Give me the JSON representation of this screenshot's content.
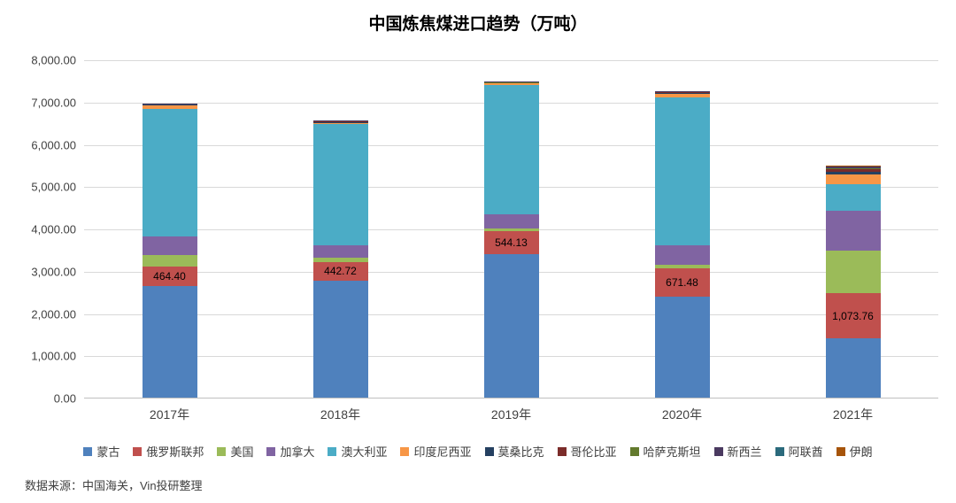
{
  "chart_data": {
    "type": "bar",
    "subtype": "stacked",
    "title": "中国炼焦煤进口趋势（万吨）",
    "categories": [
      "2017年",
      "2018年",
      "2019年",
      "2020年",
      "2021年"
    ],
    "ylim": [
      0,
      8000
    ],
    "ytick_step": 1000,
    "yticks": [
      "0.00",
      "1,000.00",
      "2,000.00",
      "3,000.00",
      "4,000.00",
      "5,000.00",
      "6,000.00",
      "7,000.00",
      "8,000.00"
    ],
    "grid": true,
    "legend_position": "bottom",
    "series": [
      {
        "name": "蒙古",
        "color": "#4F81BD",
        "values": [
          2640,
          2770,
          3390,
          2390,
          1400
        ]
      },
      {
        "name": "俄罗斯联邦",
        "color": "#C0504D",
        "values": [
          464.4,
          442.72,
          544.13,
          671.48,
          1073.76
        ]
      },
      {
        "name": "美国",
        "color": "#9BBB59",
        "values": [
          260,
          90,
          70,
          80,
          1000
        ]
      },
      {
        "name": "加拿大",
        "color": "#8064A2",
        "values": [
          440,
          300,
          330,
          470,
          950
        ]
      },
      {
        "name": "澳大利亚",
        "color": "#4BACC6",
        "values": [
          3030,
          2870,
          3060,
          3490,
          620
        ]
      },
      {
        "name": "印度尼西亚",
        "color": "#F79646",
        "values": [
          75,
          30,
          35,
          85,
          230
        ]
      },
      {
        "name": "莫桑比克",
        "color": "#254061",
        "values": [
          15,
          12,
          10,
          15,
          70
        ]
      },
      {
        "name": "哥伦比亚",
        "color": "#7B2C2A",
        "values": [
          12,
          15,
          5,
          20,
          60
        ]
      },
      {
        "name": "哈萨克斯坦",
        "color": "#637A2D",
        "values": [
          5,
          5,
          3,
          5,
          30
        ]
      },
      {
        "name": "新西兰",
        "color": "#4A3A60",
        "values": [
          5,
          5,
          3,
          5,
          25
        ]
      },
      {
        "name": "阿联酋",
        "color": "#2B6A7C",
        "values": [
          0,
          0,
          0,
          0,
          10
        ]
      },
      {
        "name": "伊朗",
        "color": "#A6540A",
        "values": [
          0,
          0,
          0,
          0,
          15
        ]
      }
    ],
    "data_labels": {
      "series_name": "俄罗斯联邦",
      "series_index": 1,
      "labels": [
        "464.40",
        "442.72",
        "544.13",
        "671.48",
        "1,073.76"
      ]
    }
  },
  "footer": {
    "source": "数据来源：中国海关，Vin投研整理"
  }
}
